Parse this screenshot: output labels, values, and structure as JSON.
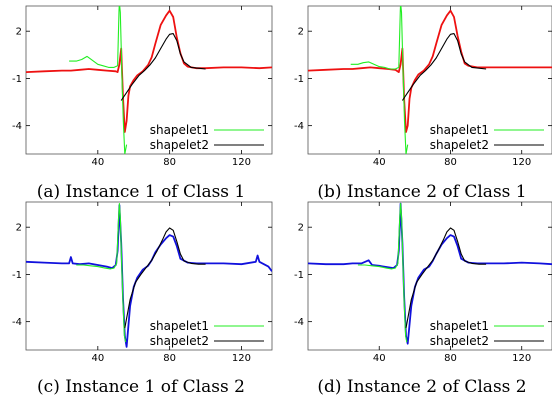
{
  "colors": {
    "green": "#22ee22",
    "black": "#000000",
    "red": "#ee1111",
    "blue": "#1111dd",
    "frame": "#555555"
  },
  "chart_data": [
    {
      "type": "line",
      "caption": "(a) Instance 1 of Class 1",
      "xlim": [
        0,
        137
      ],
      "ylim": [
        -5.8,
        3.6
      ],
      "xticks": [
        40,
        80,
        120
      ],
      "yticks": [
        2,
        -1,
        -4
      ],
      "grid": false,
      "legend_position": "bottom-right",
      "series": [
        {
          "name": "",
          "color_key": "red",
          "x": [
            0,
            10,
            20,
            25,
            30,
            35,
            40,
            45,
            50,
            51,
            52,
            53,
            54,
            55,
            56,
            57,
            58,
            60,
            62,
            65,
            68,
            70,
            72,
            75,
            78,
            80,
            82,
            84,
            86,
            88,
            90,
            95,
            100,
            110,
            120,
            130,
            137
          ],
          "y": [
            -0.6,
            -0.55,
            -0.5,
            -0.5,
            -0.45,
            -0.4,
            -0.45,
            -0.5,
            -0.55,
            -0.6,
            -0.1,
            0.9,
            -2.2,
            -4.4,
            -3.7,
            -2.1,
            -1.5,
            -1.1,
            -0.8,
            -0.55,
            -0.15,
            0.35,
            1.2,
            2.4,
            3.0,
            3.3,
            2.9,
            1.6,
            0.6,
            -0.05,
            -0.25,
            -0.35,
            -0.35,
            -0.3,
            -0.3,
            -0.35,
            -0.3
          ]
        }
      ],
      "shapelets": [
        {
          "name": "shapelet1",
          "color_key": "green",
          "x": [
            24,
            28,
            31,
            34,
            37,
            40,
            43,
            46,
            49,
            51,
            51.8,
            52,
            52.5,
            53,
            53.6,
            54.2,
            55,
            56
          ],
          "y": [
            0.1,
            0.1,
            0.2,
            0.4,
            0.15,
            -0.1,
            -0.2,
            -0.3,
            -0.3,
            -0.2,
            3.3,
            3.8,
            3.2,
            1.0,
            -1.5,
            -3.7,
            -5.8,
            -5.2
          ]
        },
        {
          "name": "shapelet2",
          "color_key": "black",
          "x": [
            53,
            56,
            59,
            63,
            66,
            69,
            72,
            75,
            78,
            80,
            82,
            84,
            86,
            88,
            92,
            96,
            100
          ],
          "y": [
            -2.4,
            -1.9,
            -1.4,
            -0.8,
            -0.5,
            -0.15,
            0.3,
            0.9,
            1.5,
            1.8,
            1.85,
            1.4,
            0.55,
            0.05,
            -0.3,
            -0.35,
            -0.4
          ]
        }
      ]
    },
    {
      "type": "line",
      "caption": "(b) Instance 2 of Class 1",
      "xlim": [
        0,
        137
      ],
      "ylim": [
        -5.8,
        3.6
      ],
      "xticks": [
        40,
        80,
        120
      ],
      "yticks": [
        2,
        -1,
        -4
      ],
      "grid": false,
      "legend_position": "bottom-right",
      "series": [
        {
          "name": "",
          "color_key": "red",
          "x": [
            0,
            10,
            20,
            25,
            30,
            35,
            40,
            45,
            49,
            51,
            52,
            53,
            54,
            55,
            56,
            57,
            58,
            60,
            62,
            65,
            68,
            70,
            72,
            75,
            78,
            80,
            82,
            84,
            86,
            88,
            90,
            95,
            100,
            110,
            120,
            130,
            137
          ],
          "y": [
            -0.5,
            -0.45,
            -0.4,
            -0.4,
            -0.35,
            -0.3,
            -0.35,
            -0.4,
            -0.45,
            -0.6,
            -0.1,
            0.9,
            -2.4,
            -4.4,
            -4.0,
            -2.3,
            -1.6,
            -1.1,
            -0.75,
            -0.5,
            -0.1,
            0.4,
            1.2,
            2.4,
            3.0,
            3.3,
            2.9,
            1.7,
            0.7,
            -0.05,
            -0.2,
            -0.3,
            -0.3,
            -0.3,
            -0.3,
            -0.3,
            -0.3
          ]
        }
      ],
      "shapelets": [
        {
          "name": "shapelet1",
          "color_key": "green",
          "x": [
            24,
            28,
            31,
            34,
            37,
            40,
            43,
            46,
            49,
            51,
            51.8,
            52,
            52.5,
            53,
            53.6,
            54.2,
            55,
            56
          ],
          "y": [
            -0.1,
            -0.1,
            0.0,
            0.05,
            -0.1,
            -0.25,
            -0.3,
            -0.4,
            -0.4,
            -0.3,
            3.3,
            3.8,
            3.2,
            1.0,
            -1.5,
            -3.7,
            -5.8,
            -5.2
          ]
        },
        {
          "name": "shapelet2",
          "color_key": "black",
          "x": [
            53,
            56,
            59,
            63,
            66,
            69,
            72,
            75,
            78,
            80,
            82,
            84,
            86,
            88,
            92,
            96,
            100
          ],
          "y": [
            -2.4,
            -1.9,
            -1.4,
            -0.8,
            -0.5,
            -0.15,
            0.3,
            0.9,
            1.5,
            1.8,
            1.85,
            1.4,
            0.55,
            0.05,
            -0.3,
            -0.35,
            -0.4
          ]
        }
      ]
    },
    {
      "type": "line",
      "caption": "(c) Instance 1 of Class 2",
      "xlim": [
        0,
        137
      ],
      "ylim": [
        -5.8,
        3.6
      ],
      "xticks": [
        40,
        80,
        120
      ],
      "yticks": [
        2,
        -1,
        -4
      ],
      "grid": false,
      "legend_position": "bottom-right",
      "series": [
        {
          "name": "",
          "color_key": "blue",
          "x": [
            0,
            10,
            20,
            24,
            25,
            26,
            30,
            35,
            40,
            45,
            48,
            50,
            51,
            52,
            53,
            54,
            55,
            56,
            58,
            60,
            62,
            65,
            68,
            70,
            72,
            75,
            78,
            80,
            82,
            84,
            86,
            90,
            95,
            100,
            110,
            120,
            128,
            129,
            130,
            135,
            137
          ],
          "y": [
            -0.2,
            -0.25,
            -0.3,
            -0.3,
            0.1,
            -0.3,
            -0.35,
            -0.3,
            -0.4,
            -0.5,
            -0.6,
            -0.4,
            0.5,
            3.4,
            1.0,
            -2.5,
            -4.9,
            -5.6,
            -3.0,
            -1.8,
            -1.2,
            -0.7,
            -0.45,
            -0.1,
            0.4,
            0.9,
            1.3,
            1.5,
            1.4,
            0.8,
            0.0,
            -0.25,
            -0.3,
            -0.3,
            -0.3,
            -0.35,
            -0.2,
            0.2,
            -0.2,
            -0.5,
            -0.8
          ]
        }
      ],
      "shapelets": [
        {
          "name": "shapelet1",
          "color_key": "green",
          "x": [
            28,
            32,
            36,
            40,
            44,
            47,
            49,
            50.5,
            51.5,
            52,
            52.6,
            53.2,
            54,
            54.8,
            55.5
          ],
          "y": [
            -0.4,
            -0.4,
            -0.45,
            -0.5,
            -0.6,
            -0.65,
            -0.6,
            -0.3,
            2.5,
            3.5,
            2.5,
            0.0,
            -2.8,
            -4.9,
            -5.3
          ]
        },
        {
          "name": "shapelet2",
          "color_key": "black",
          "x": [
            55,
            58,
            61,
            64,
            67,
            70,
            73,
            76,
            78,
            80,
            82,
            84,
            86,
            88,
            92,
            96,
            100
          ],
          "y": [
            -4.4,
            -2.6,
            -1.5,
            -1.0,
            -0.55,
            -0.1,
            0.5,
            1.2,
            1.7,
            1.95,
            1.8,
            1.1,
            0.3,
            -0.15,
            -0.3,
            -0.35,
            -0.35
          ]
        }
      ]
    },
    {
      "type": "line",
      "caption": "(d) Instance 2 of Class 2",
      "xlim": [
        0,
        137
      ],
      "ylim": [
        -5.8,
        3.6
      ],
      "xticks": [
        40,
        80,
        120
      ],
      "yticks": [
        2,
        -1,
        -4
      ],
      "grid": false,
      "legend_position": "bottom-right",
      "series": [
        {
          "name": "",
          "color_key": "blue",
          "x": [
            0,
            10,
            20,
            25,
            30,
            34,
            36,
            40,
            45,
            48,
            50,
            51,
            52,
            53,
            54,
            55,
            56,
            58,
            60,
            62,
            65,
            68,
            70,
            72,
            75,
            78,
            80,
            82,
            84,
            86,
            90,
            95,
            100,
            110,
            120,
            130,
            137
          ],
          "y": [
            -0.3,
            -0.35,
            -0.35,
            -0.3,
            -0.3,
            -0.1,
            -0.4,
            -0.45,
            -0.55,
            -0.6,
            -0.4,
            0.5,
            3.5,
            1.0,
            -2.5,
            -4.9,
            -5.4,
            -3.0,
            -1.8,
            -1.2,
            -0.7,
            -0.5,
            -0.15,
            0.3,
            0.9,
            1.3,
            1.5,
            1.4,
            0.8,
            0.0,
            -0.25,
            -0.3,
            -0.3,
            -0.3,
            -0.25,
            -0.3,
            -0.35
          ]
        }
      ],
      "shapelets": [
        {
          "name": "shapelet1",
          "color_key": "green",
          "x": [
            28,
            32,
            36,
            40,
            44,
            47,
            49,
            50.5,
            51.5,
            52,
            52.6,
            53.2,
            54,
            54.8,
            55.5
          ],
          "y": [
            -0.4,
            -0.4,
            -0.45,
            -0.5,
            -0.6,
            -0.65,
            -0.6,
            -0.3,
            2.5,
            3.5,
            2.5,
            0.0,
            -2.8,
            -4.9,
            -5.3
          ]
        },
        {
          "name": "shapelet2",
          "color_key": "black",
          "x": [
            55,
            58,
            61,
            64,
            67,
            70,
            73,
            76,
            78,
            80,
            82,
            84,
            86,
            88,
            92,
            96,
            100
          ],
          "y": [
            -4.4,
            -2.6,
            -1.5,
            -1.0,
            -0.55,
            -0.1,
            0.5,
            1.2,
            1.7,
            1.95,
            1.8,
            1.1,
            0.3,
            -0.15,
            -0.3,
            -0.35,
            -0.35
          ]
        }
      ]
    }
  ]
}
